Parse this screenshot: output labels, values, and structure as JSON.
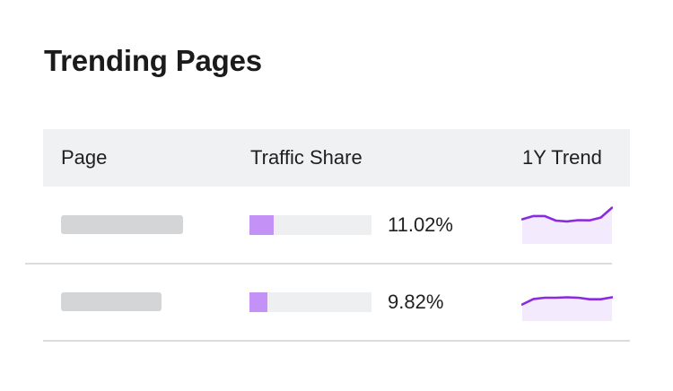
{
  "title": "Trending Pages",
  "table": {
    "columns": {
      "page": "Page",
      "traffic_share": "Traffic Share",
      "trend": "1Y Trend"
    },
    "rows": [
      {
        "traffic_share_text": "11.02%",
        "traffic_share_bar_fraction": 0.2,
        "trend": [
          7.2,
          8.7,
          8.7,
          6.6,
          6.2,
          6.8,
          6.7,
          8.0,
          12.5
        ]
      },
      {
        "traffic_share_text": "9.82%",
        "traffic_share_bar_fraction": 0.15,
        "trend": [
          3.5,
          6.0,
          6.6,
          6.6,
          6.8,
          6.6,
          5.9,
          5.9,
          6.8
        ]
      }
    ]
  },
  "colors": {
    "accent_line": "#8a2be2",
    "accent_fill": "#f3eafd",
    "bar_fill": "#c491f7",
    "bar_track": "#eeeff1",
    "header_bg": "#f0f1f2",
    "placeholder": "#d4d5d7"
  }
}
